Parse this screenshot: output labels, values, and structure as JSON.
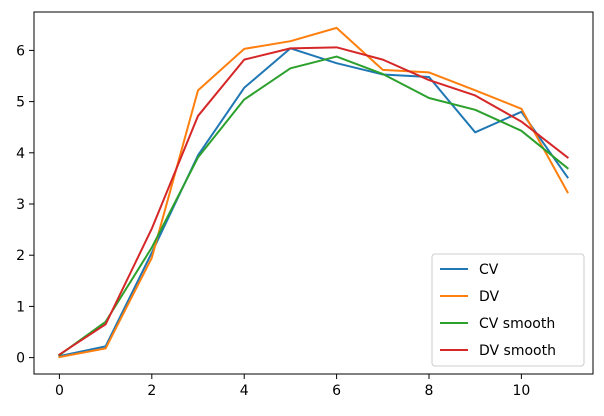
{
  "chart_data": {
    "type": "line",
    "title": "",
    "xlabel": "",
    "ylabel": "",
    "x": [
      0,
      1,
      2,
      3,
      4,
      5,
      6,
      7,
      8,
      9,
      10,
      11
    ],
    "xlim": [
      -0.55,
      11.55
    ],
    "ylim": [
      -0.32,
      6.75
    ],
    "xticks": [
      0,
      2,
      4,
      6,
      8,
      10
    ],
    "yticks": [
      0,
      1,
      2,
      3,
      4,
      5,
      6
    ],
    "grid": false,
    "legend_position": "bottom-right",
    "series": [
      {
        "name": "CV",
        "color": "#1f77b4",
        "values": [
          0.03,
          0.22,
          2.05,
          3.95,
          5.27,
          6.04,
          5.75,
          5.53,
          5.48,
          4.4,
          4.8,
          3.52
        ]
      },
      {
        "name": "DV",
        "color": "#ff7f0e",
        "values": [
          0.01,
          0.18,
          1.95,
          5.22,
          6.03,
          6.18,
          6.44,
          5.62,
          5.57,
          5.22,
          4.86,
          3.23
        ]
      },
      {
        "name": "CV smooth",
        "color": "#2ca02c",
        "values": [
          0.05,
          0.7,
          2.15,
          3.91,
          5.04,
          5.65,
          5.88,
          5.54,
          5.07,
          4.84,
          4.43,
          3.7
        ]
      },
      {
        "name": "DV smooth",
        "color": "#d62728",
        "values": [
          0.06,
          0.65,
          2.52,
          4.72,
          5.82,
          6.04,
          6.06,
          5.82,
          5.42,
          5.12,
          4.61,
          3.91
        ]
      }
    ]
  }
}
